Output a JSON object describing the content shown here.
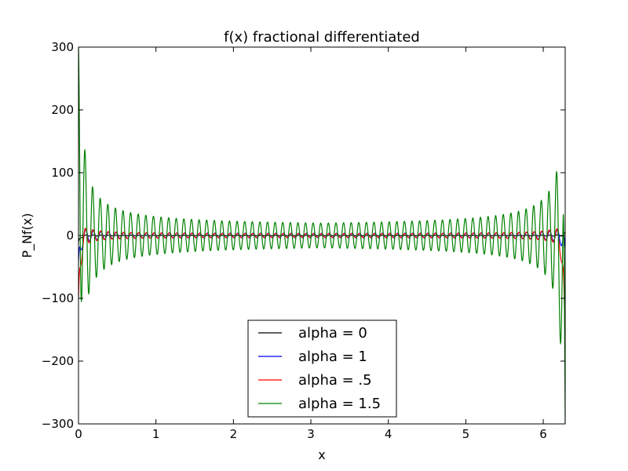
{
  "chart_data": {
    "type": "line",
    "title": "f(x) fractional differentiated",
    "xlabel": "x",
    "ylabel": "P_Nf(x)",
    "xlim": [
      0,
      6.2832
    ],
    "ylim": [
      -300,
      300
    ],
    "x_ticks": [
      0,
      1,
      2,
      3,
      4,
      5,
      6
    ],
    "y_ticks": [
      -300,
      -200,
      -100,
      0,
      100,
      200,
      300
    ],
    "x_tick_labels": [
      "0",
      "1",
      "2",
      "3",
      "4",
      "5",
      "6"
    ],
    "y_tick_labels": [
      "−300",
      "−200",
      "−100",
      "0",
      "100",
      "200",
      "300"
    ],
    "grid": false,
    "legend_position": "lower-center",
    "oscillation_frequency": 64,
    "series": [
      {
        "name": "alpha = 0",
        "color": "#000000",
        "alpha": 0,
        "amplitude_center": 0.2,
        "amplitude_edge": 3,
        "end_value_left": -10,
        "end_value_right": 5
      },
      {
        "name": "alpha = 1",
        "color": "#0000ff",
        "alpha": 1,
        "amplitude_center": 3,
        "amplitude_edge": 25,
        "end_value_left": -40,
        "end_value_right": -20
      },
      {
        "name": "alpha = .5",
        "color": "#ff0000",
        "alpha": 0.5,
        "amplitude_center": 2,
        "amplitude_edge": 35,
        "end_value_left": -100,
        "end_value_right": -180
      },
      {
        "name": "alpha = 1.5",
        "color": "#008000",
        "alpha": 1.5,
        "amplitude_center": 12,
        "amplitude_edge": 300,
        "end_value_left": 300,
        "end_value_right": -300
      }
    ]
  }
}
